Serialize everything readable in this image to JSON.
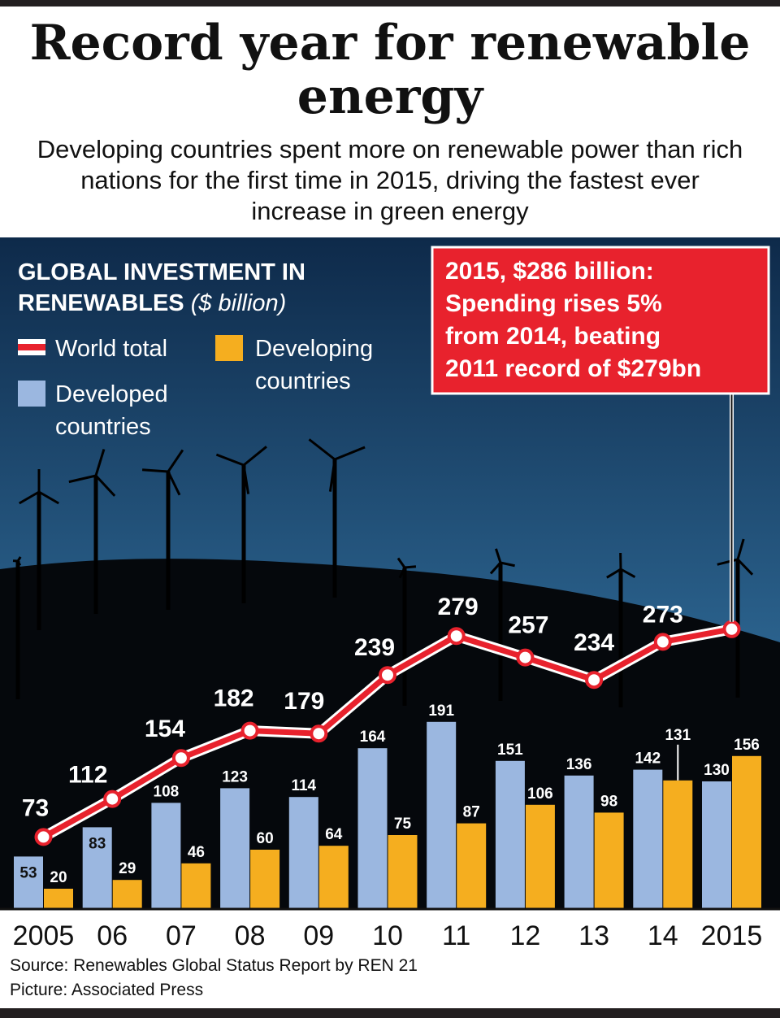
{
  "header": {
    "title": "Record year for renewable energy",
    "subtitle": "Developing countries spent more on renewable power than rich nations for the first time in 2015, driving the fastest ever increase in green energy"
  },
  "colors": {
    "world_total_line": "#e8222d",
    "developed_bar": "#9bb7e0",
    "developing_bar": "#f5ae1f",
    "sky_top": "#0e2a4a",
    "sky_bottom": "#3d86b8",
    "hill": "#05080c"
  },
  "chart_data": {
    "type": "bar",
    "title": "GLOBAL INVESTMENT IN RENEWABLES",
    "unit_label": "($ billion)",
    "categories": [
      "2005",
      "06",
      "07",
      "08",
      "09",
      "10",
      "11",
      "12",
      "13",
      "14",
      "2015"
    ],
    "series": [
      {
        "name": "Developed countries",
        "type": "bar",
        "values": [
          53,
          83,
          108,
          123,
          114,
          164,
          191,
          151,
          136,
          142,
          130
        ]
      },
      {
        "name": "Developing countries",
        "type": "bar",
        "values": [
          20,
          29,
          46,
          60,
          64,
          75,
          87,
          106,
          98,
          131,
          156
        ]
      },
      {
        "name": "World total",
        "type": "line",
        "values": [
          73,
          112,
          154,
          182,
          179,
          239,
          279,
          257,
          234,
          273,
          null
        ]
      }
    ],
    "legend": {
      "world_total": "World total",
      "developing": "Developing countries",
      "developed": "Developed countries"
    },
    "callout": {
      "lines": [
        "2015, $286 billion:",
        "Spending rises 5%",
        "from 2014, beating",
        "2011 record of $279bn"
      ],
      "value": 286
    },
    "ylim": [
      0,
      300
    ]
  },
  "footer": {
    "source": "Source: Renewables Global Status Report by REN 21",
    "picture": "Picture: Associated Press"
  }
}
